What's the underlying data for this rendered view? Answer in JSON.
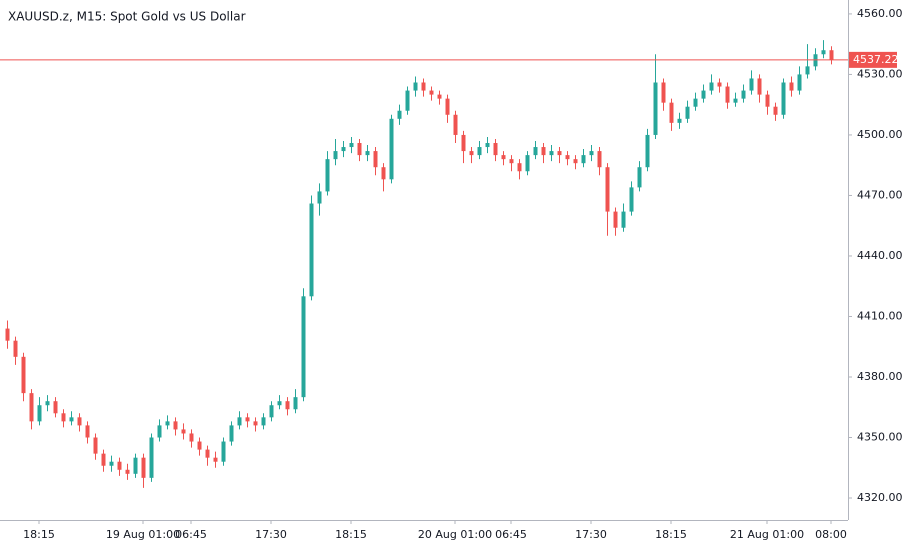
{
  "chart_data": {
    "type": "candlestick",
    "title": "XAUUSD.z, M15: Spot Gold vs US Dollar",
    "categories": [
      null,
      null,
      null,
      null,
      "18:15",
      null,
      null,
      null,
      null,
      null,
      null,
      null,
      null,
      null,
      null,
      null,
      null,
      "19 Aug 01:00",
      null,
      null,
      null,
      null,
      null,
      "06:45",
      null,
      null,
      null,
      null,
      null,
      null,
      null,
      null,
      null,
      "17:30",
      null,
      null,
      null,
      null,
      null,
      null,
      null,
      null,
      null,
      "18:15",
      null,
      null,
      null,
      null,
      null,
      null,
      null,
      null,
      null,
      null,
      null,
      null,
      "20 Aug 01:00",
      null,
      null,
      null,
      null,
      null,
      null,
      "06:45",
      null,
      null,
      null,
      null,
      null,
      null,
      null,
      null,
      null,
      "17:30",
      null,
      null,
      null,
      null,
      null,
      null,
      null,
      null,
      null,
      "18:15",
      null,
      null,
      null,
      null,
      null,
      null,
      null,
      null,
      null,
      null,
      null,
      "21 Aug 01:00",
      null,
      null,
      null,
      null,
      null,
      null,
      null,
      "08:00"
    ],
    "open": [
      4404,
      4398,
      4390,
      4372,
      4358,
      4366,
      4368,
      4362,
      4358,
      4360,
      4356,
      4350,
      4342,
      4336,
      4338,
      4334,
      4332,
      4340,
      4330,
      4350,
      4356,
      4358,
      4354,
      4352,
      4348,
      4344,
      4340,
      4338,
      4348,
      4356,
      4360,
      4358,
      4356,
      4360,
      4366,
      4368,
      4364,
      4370,
      4420,
      4466,
      4472,
      4488,
      4492,
      4494,
      4496,
      4490,
      4492,
      4484,
      4478,
      4508,
      4512,
      4522,
      4526,
      4522,
      4520,
      4518,
      4510,
      4500,
      4492,
      4490,
      4494,
      4496,
      4490,
      4488,
      4486,
      4482,
      4490,
      4494,
      4490,
      4492,
      4490,
      4488,
      4486,
      4490,
      4492,
      4484,
      4462,
      4454,
      4462,
      4474,
      4484,
      4500,
      4526,
      4516,
      4506,
      4508,
      4514,
      4518,
      4522,
      4526,
      4524,
      4516,
      4518,
      4522,
      4528,
      4520,
      4514,
      4510,
      4526,
      4522,
      4530,
      4534,
      4540,
      4542
    ],
    "high": [
      4408,
      4400,
      4392,
      4374,
      4370,
      4371,
      4370,
      4364,
      4363,
      4362,
      4358,
      4352,
      4344,
      4341,
      4340,
      4337,
      4342,
      4342,
      4352,
      4359,
      4361,
      4360,
      4357,
      4354,
      4350,
      4346,
      4343,
      4350,
      4358,
      4363,
      4362,
      4360,
      4362,
      4368,
      4371,
      4370,
      4374,
      4424,
      4470,
      4476,
      4492,
      4498,
      4497,
      4499,
      4498,
      4495,
      4494,
      4486,
      4510,
      4515,
      4524,
      4529,
      4528,
      4524,
      4522,
      4520,
      4512,
      4502,
      4494,
      4497,
      4499,
      4498,
      4492,
      4490,
      4488,
      4492,
      4497,
      4496,
      4495,
      4494,
      4492,
      4490,
      4493,
      4495,
      4494,
      4486,
      4464,
      4466,
      4477,
      4487,
      4503,
      4540,
      4528,
      4518,
      4511,
      4517,
      4521,
      4525,
      4530,
      4528,
      4526,
      4521,
      4525,
      4532,
      4530,
      4522,
      4516,
      4528,
      4529,
      4534,
      4545,
      4543,
      4547,
      4544
    ],
    "low": [
      4394,
      4386,
      4368,
      4354,
      4356,
      4363,
      4360,
      4355,
      4356,
      4353,
      4347,
      4339,
      4333,
      4333,
      4331,
      4329,
      4330,
      4325,
      4328,
      4348,
      4354,
      4351,
      4349,
      4345,
      4341,
      4336,
      4335,
      4336,
      4346,
      4354,
      4355,
      4353,
      4354,
      4358,
      4364,
      4361,
      4362,
      4368,
      4418,
      4460,
      4470,
      4485,
      4489,
      4491,
      4487,
      4487,
      4480,
      4472,
      4476,
      4505,
      4510,
      4519,
      4519,
      4517,
      4515,
      4506,
      4496,
      4486,
      4486,
      4488,
      4491,
      4487,
      4485,
      4482,
      4478,
      4480,
      4488,
      4486,
      4487,
      4486,
      4485,
      4483,
      4484,
      4487,
      4480,
      4450,
      4450,
      4452,
      4460,
      4472,
      4482,
      4498,
      4512,
      4502,
      4503,
      4506,
      4512,
      4516,
      4520,
      4521,
      4513,
      4514,
      4516,
      4520,
      4516,
      4510,
      4507,
      4508,
      4519,
      4520,
      4528,
      4532,
      4538,
      4535
    ],
    "close": [
      4398,
      4390,
      4372,
      4358,
      4366,
      4368,
      4362,
      4358,
      4360,
      4356,
      4350,
      4342,
      4336,
      4338,
      4334,
      4332,
      4340,
      4330,
      4350,
      4356,
      4358,
      4354,
      4352,
      4348,
      4344,
      4340,
      4338,
      4348,
      4356,
      4360,
      4358,
      4356,
      4360,
      4366,
      4368,
      4364,
      4370,
      4420,
      4466,
      4472,
      4488,
      4492,
      4494,
      4496,
      4490,
      4492,
      4484,
      4478,
      4508,
      4512,
      4522,
      4526,
      4522,
      4520,
      4518,
      4510,
      4500,
      4492,
      4490,
      4494,
      4496,
      4490,
      4488,
      4486,
      4482,
      4490,
      4494,
      4490,
      4492,
      4490,
      4488,
      4486,
      4490,
      4492,
      4484,
      4462,
      4454,
      4462,
      4474,
      4484,
      4500,
      4526,
      4516,
      4506,
      4508,
      4514,
      4518,
      4522,
      4526,
      4524,
      4516,
      4518,
      4522,
      4528,
      4520,
      4514,
      4510,
      4526,
      4522,
      4530,
      4534,
      4540,
      4542,
      4537.22
    ],
    "up_color": "#26a69a",
    "down_color": "#ef5350",
    "last_price": 4537.22,
    "last_price_color": "#ef5350",
    "ylim": [
      4309.1,
      4566.9
    ],
    "yticks": [
      {
        "value": 4320,
        "label": "4320.00"
      },
      {
        "value": 4350,
        "label": "4350.00"
      },
      {
        "value": 4380,
        "label": "4380.00"
      },
      {
        "value": 4410,
        "label": "4410.00"
      },
      {
        "value": 4440,
        "label": "4440.00"
      },
      {
        "value": 4470,
        "label": "4470.00"
      },
      {
        "value": 4500,
        "label": "4500.00"
      },
      {
        "value": 4530,
        "label": "4530.00"
      },
      {
        "value": 4560,
        "label": "4560.00"
      }
    ],
    "grid": false
  }
}
